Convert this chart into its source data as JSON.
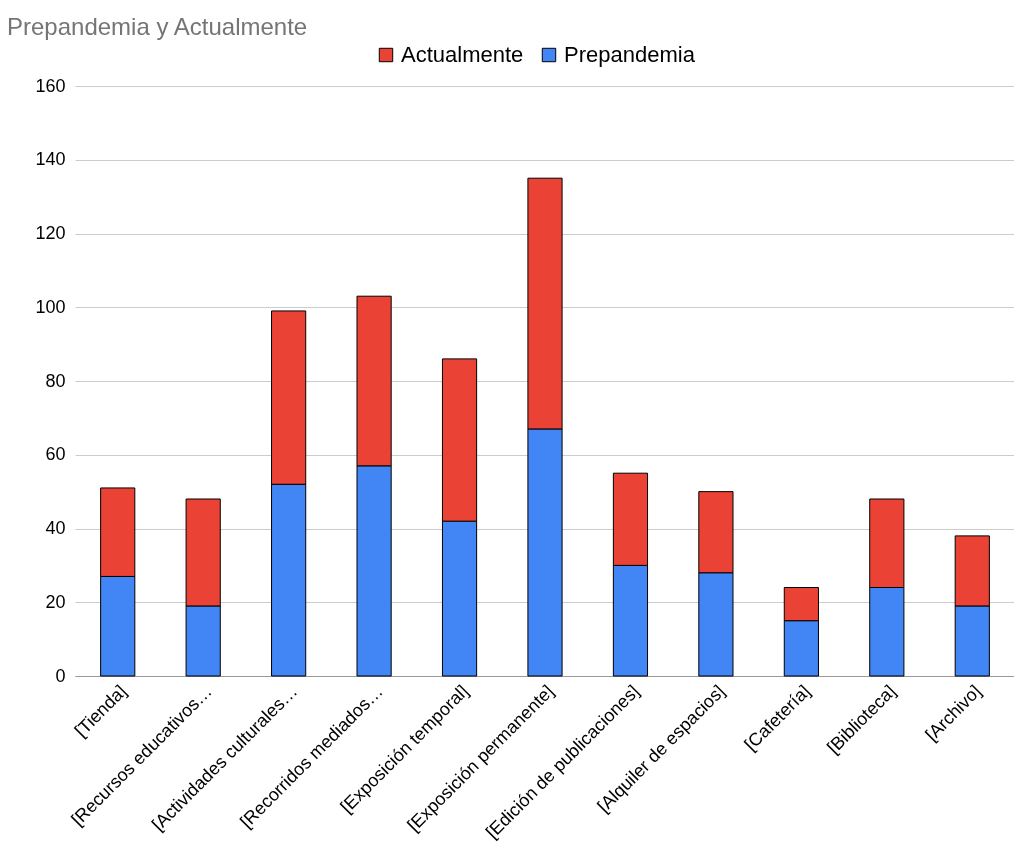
{
  "chart_data": {
    "type": "bar",
    "title": "Prepandemia  y Actualmente",
    "stacked": true,
    "legend": "top",
    "grid": "y",
    "categories": [
      "[Tienda]",
      "[Recursos educativos…",
      "[Actividades culturales…",
      "[Recorridos mediados…",
      "[Exposición temporal]",
      "[Exposición permanente]",
      "[Edición de publicaciones]",
      "[Alquiler de espacios]",
      "[Cafetería]",
      "[Biblioteca]",
      "[Archivo]"
    ],
    "series": [
      {
        "name": "Prepandemia",
        "color": "#4285f4",
        "values": [
          27,
          19,
          52,
          57,
          42,
          67,
          30,
          28,
          15,
          24,
          19
        ]
      },
      {
        "name": "Actualmente",
        "color": "#ea4335",
        "values": [
          24,
          29,
          47,
          46,
          44,
          68,
          25,
          22,
          9,
          24,
          19
        ]
      }
    ],
    "ylim": [
      0,
      160
    ],
    "yticks": [
      0,
      20,
      40,
      60,
      80,
      100,
      120,
      140,
      160
    ]
  }
}
